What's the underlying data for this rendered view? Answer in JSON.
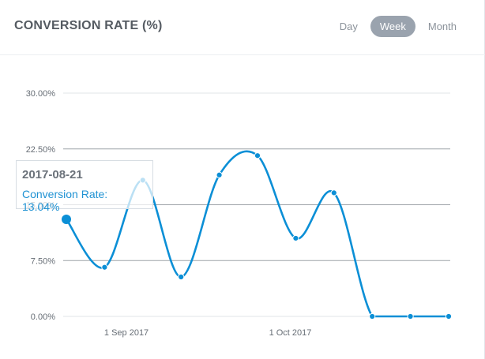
{
  "header": {
    "title": "CONVERSION RATE (%)",
    "tabs": [
      {
        "label": "Day",
        "active": false
      },
      {
        "label": "Week",
        "active": true
      },
      {
        "label": "Month",
        "active": false
      }
    ]
  },
  "tooltip": {
    "date": "2017-08-21",
    "label": "Conversion Rate: 13.04%"
  },
  "colors": {
    "line": "#0b8fd6",
    "grid_major": "#9ea3a8",
    "grid_minor": "#e1e4e7",
    "active_tab": "#9aa3ae"
  },
  "chart_data": {
    "type": "line",
    "title": "",
    "xlabel": "",
    "ylabel": "",
    "ylim": [
      0,
      30
    ],
    "yticks": [
      {
        "value": 0,
        "label": "0.00%"
      },
      {
        "value": 7.5,
        "label": "7.50%"
      },
      {
        "value": 15,
        "label": "15.00%"
      },
      {
        "value": 22.5,
        "label": "22.50%"
      },
      {
        "value": 30,
        "label": "30.00%"
      }
    ],
    "xticks": [
      {
        "date": "2017-09-01",
        "label": "1 Sep 2017"
      },
      {
        "date": "2017-10-01",
        "label": "1 Oct 2017"
      }
    ],
    "grid": true,
    "highlighted_index": 0,
    "series": [
      {
        "x": [
          "2017-08-21",
          "2017-08-28",
          "2017-09-04",
          "2017-09-11",
          "2017-09-18",
          "2017-09-25",
          "2017-10-02",
          "2017-10-09",
          "2017-10-16",
          "2017-10-23",
          "2017-10-30"
        ],
        "values": [
          13.04,
          6.6,
          18.3,
          5.3,
          19.0,
          21.6,
          10.5,
          16.6,
          0,
          0,
          0
        ]
      }
    ]
  }
}
